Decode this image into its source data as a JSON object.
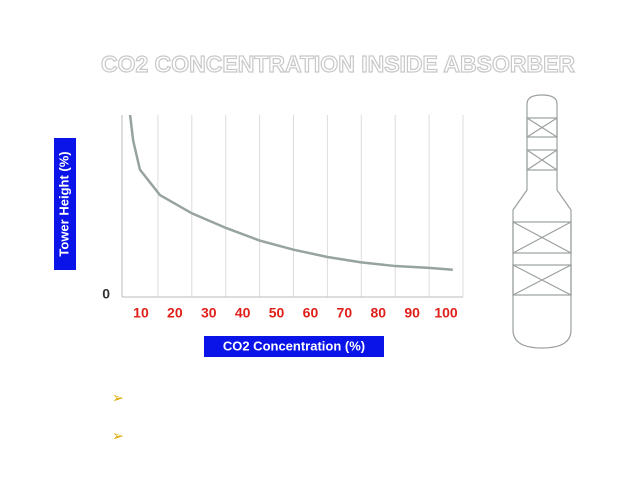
{
  "chart_data": {
    "type": "line",
    "title": "CO2 CONCENTRATION INSIDE ABSORBER",
    "x_label": "CO2 Concentration (%)",
    "y_label": "Tower Height (%)",
    "series": [
      {
        "name": "CO2",
        "color": "#97a3a0",
        "x": [
          6.8,
          7.7,
          9.7,
          15.6,
          25,
          35,
          45,
          55,
          65,
          75,
          85,
          95,
          102
        ],
        "values": [
          100,
          86,
          70,
          56,
          46,
          38,
          31,
          26,
          22,
          19,
          17,
          16,
          15
        ]
      }
    ],
    "xlim": [
      5,
      105
    ],
    "xticks": [
      10,
      20,
      30,
      40,
      50,
      60,
      70,
      80,
      90,
      100
    ],
    "ylim": [
      0,
      100
    ],
    "yticks": [
      0
    ],
    "grid": true,
    "tick_color": "#e0201b"
  }
}
